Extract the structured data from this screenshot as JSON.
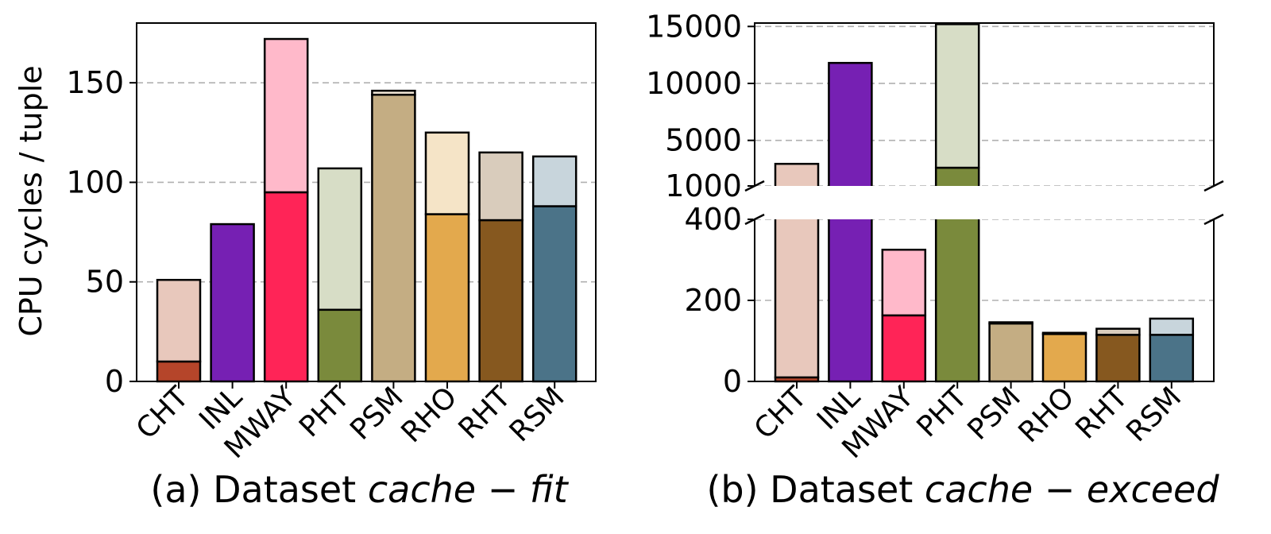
{
  "chart_data": [
    {
      "type": "bar",
      "stacked": true,
      "categories": [
        "CHT",
        "INL",
        "MWAY",
        "PHT",
        "PSM",
        "RHO",
        "RHT",
        "RSM"
      ],
      "series": [
        {
          "name": "bottom",
          "values": [
            10,
            79,
            95,
            36,
            144,
            84,
            81,
            88
          ]
        },
        {
          "name": "top",
          "values": [
            41,
            0,
            77,
            71,
            2,
            41,
            34,
            25
          ]
        }
      ],
      "colors": {
        "bottom": [
          "#b5452a",
          "#7620b3",
          "#ff2457",
          "#7a8a3c",
          "#c4ad83",
          "#e3a94d",
          "#86581f",
          "#4b7388"
        ],
        "top": [
          "#e8c8bc",
          "#7620b3",
          "#ffb9ca",
          "#d7ddc6",
          "#f3e8d8",
          "#f5e4c7",
          "#d9ccbc",
          "#c8d5dc"
        ]
      },
      "ylabel": "CPU cycles / tuple",
      "yticks": [
        0,
        50,
        100,
        150
      ],
      "ylim": [
        0,
        180
      ],
      "grid": true,
      "caption_prefix": "(a) Dataset ",
      "caption_math": "cache − fit"
    },
    {
      "type": "bar",
      "stacked": true,
      "broken_axis": true,
      "categories": [
        "CHT",
        "INL",
        "MWAY",
        "PHT",
        "PSM",
        "RHO",
        "RHT",
        "RSM"
      ],
      "series": [
        {
          "name": "bottom",
          "values": [
            10,
            11800,
            163,
            2600,
            143,
            117,
            115,
            115
          ]
        },
        {
          "name": "top",
          "values": [
            2930,
            0,
            162,
            12600,
            3,
            3,
            15,
            40
          ]
        }
      ],
      "colors": {
        "bottom": [
          "#b5452a",
          "#7620b3",
          "#ff2457",
          "#7a8a3c",
          "#c4ad83",
          "#e3a94d",
          "#86581f",
          "#4b7388"
        ],
        "top": [
          "#e8c8bc",
          "#7620b3",
          "#ffb9ca",
          "#d7ddc6",
          "#f3e8d8",
          "#f5e4c7",
          "#d9ccbc",
          "#c8d5dc"
        ]
      },
      "lower_yticks": [
        0,
        200,
        400
      ],
      "lower_ylim": [
        0,
        400
      ],
      "upper_yticks": [
        1000,
        5000,
        10000,
        15000
      ],
      "upper_ylim": [
        0,
        15300
      ],
      "upper_axis_floor": 1000,
      "grid": true,
      "caption_prefix": "(b) Dataset ",
      "caption_math": "cache − exceed"
    }
  ]
}
